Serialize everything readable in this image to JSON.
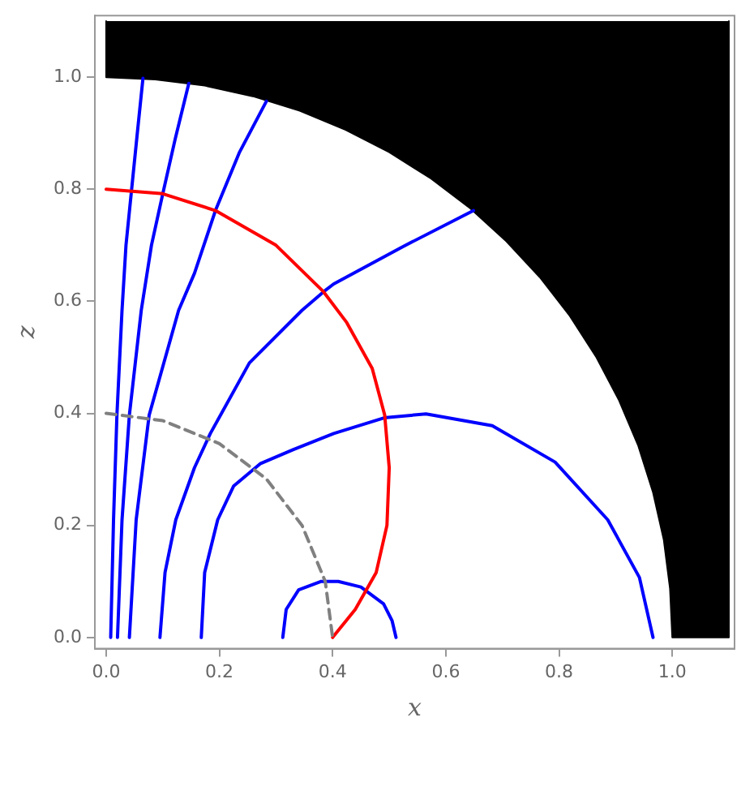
{
  "chart_data": {
    "type": "line",
    "xlabel": "x",
    "ylabel": "z",
    "xlim": [
      -0.02,
      1.11
    ],
    "ylim": [
      -0.02,
      1.11
    ],
    "xticks": [
      {
        "value": 0,
        "label": "0.0"
      },
      {
        "value": 0.2,
        "label": "0.2"
      },
      {
        "value": 0.4,
        "label": "0.4"
      },
      {
        "value": 0.6,
        "label": "0.6"
      },
      {
        "value": 0.8,
        "label": "0.8"
      },
      {
        "value": 1.0,
        "label": "1.0"
      }
    ],
    "yticks": [
      {
        "value": 0,
        "label": "0.0"
      },
      {
        "value": 0.2,
        "label": "0.2"
      },
      {
        "value": 0.4,
        "label": "0.4"
      },
      {
        "value": 0.6,
        "label": "0.6"
      },
      {
        "value": 0.8,
        "label": "0.8"
      },
      {
        "value": 1.0,
        "label": "1.0"
      }
    ],
    "grid": false,
    "legend": false,
    "marker": "none",
    "series": [
      {
        "type": "area",
        "color": "#000000",
        "x": [
          0,
          0,
          0.087,
          0.174,
          0.259,
          0.342,
          0.423,
          0.5,
          0.574,
          0.643,
          0.707,
          0.766,
          0.819,
          0.866,
          0.906,
          0.94,
          0.966,
          0.985,
          0.996,
          1.0,
          1.1,
          1.1
        ],
        "values": [
          1.1,
          1.0,
          0.996,
          0.985,
          0.966,
          0.94,
          0.906,
          0.866,
          0.819,
          0.766,
          0.707,
          0.643,
          0.574,
          0.5,
          0.423,
          0.342,
          0.259,
          0.174,
          0.087,
          0,
          0,
          1.1
        ]
      },
      {
        "color": "#0000ff",
        "x": [
          0.008,
          0.013,
          0.019,
          0.028,
          0.035,
          0.045,
          0.055,
          0.065
        ],
        "values": [
          0,
          0.21,
          0.397,
          0.584,
          0.7,
          0.8,
          0.9,
          0.998
        ]
      },
      {
        "color": "#0000ff",
        "x": [
          0.02,
          0.028,
          0.041,
          0.062,
          0.08,
          0.1,
          0.122,
          0.146
        ],
        "values": [
          0,
          0.21,
          0.397,
          0.584,
          0.7,
          0.792,
          0.89,
          0.989
        ]
      },
      {
        "color": "#0000ff",
        "x": [
          0.041,
          0.053,
          0.076,
          0.128,
          0.156,
          0.193,
          0.235,
          0.283
        ],
        "values": [
          0,
          0.21,
          0.397,
          0.584,
          0.65,
          0.762,
          0.865,
          0.957
        ]
      },
      {
        "color": "#0000ff",
        "x": [
          0.095,
          0.104,
          0.123,
          0.156,
          0.184,
          0.253,
          0.346,
          0.384,
          0.402,
          0.523,
          0.649
        ],
        "values": [
          0,
          0.116,
          0.21,
          0.303,
          0.364,
          0.49,
          0.584,
          0.617,
          0.631,
          0.697,
          0.762
        ]
      },
      {
        "color": "#0000ff",
        "x": [
          0.168,
          0.174,
          0.197,
          0.225,
          0.272,
          0.33,
          0.402,
          0.491,
          0.565,
          0.682,
          0.793,
          0.886,
          0.942,
          0.966
        ],
        "values": [
          0,
          0.116,
          0.21,
          0.27,
          0.31,
          0.335,
          0.364,
          0.392,
          0.399,
          0.378,
          0.313,
          0.21,
          0.107,
          0
        ]
      },
      {
        "color": "#0000ff",
        "x": [
          0.312,
          0.318,
          0.34,
          0.38,
          0.41,
          0.45,
          0.49,
          0.505,
          0.512
        ],
        "values": [
          0,
          0.05,
          0.085,
          0.1,
          0.1,
          0.09,
          0.06,
          0.03,
          0
        ]
      },
      {
        "color": "#ff0000",
        "x": [
          0,
          0.1,
          0.193,
          0.3,
          0.384,
          0.425,
          0.47,
          0.492,
          0.5,
          0.496,
          0.477,
          0.44,
          0.4
        ],
        "values": [
          0.8,
          0.792,
          0.762,
          0.7,
          0.617,
          0.562,
          0.48,
          0.397,
          0.303,
          0.2,
          0.116,
          0.05,
          0
        ]
      },
      {
        "color": "#808080",
        "line_style": "dashed",
        "x": [
          0,
          0.1,
          0.2,
          0.283,
          0.346,
          0.387,
          0.4
        ],
        "values": [
          0.4,
          0.387,
          0.346,
          0.283,
          0.2,
          0.1,
          0
        ]
      }
    ]
  }
}
